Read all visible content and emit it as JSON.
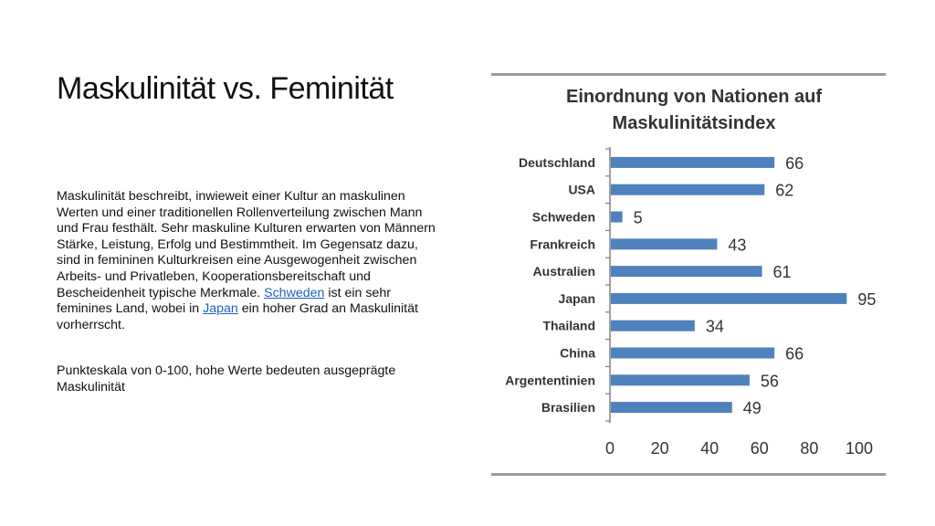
{
  "slide": {
    "title": "Maskulinität vs. Feminität",
    "paragraph1": {
      "text_before": "Maskulinität beschreibt, inwieweit einer Kultur an maskulinen Werten und einer traditionellen Rollenverteilung zwischen Mann und Frau festhält. Sehr maskuline Kulturen erwarten von Männern Stärke, Leistung, Erfolg und Bestimmtheit. Im Gegensatz dazu, sind in femininen Kulturkreisen eine Ausgewogenheit zwischen Arbeits- und Privatleben, Kooperationsbereitschaft und Bescheidenheit typische Merkmale. ",
      "link1": "Schweden",
      "text_middle": " ist ein sehr feminines Land, wobei in ",
      "link2": "Japan",
      "text_after": " ein hoher Grad an Maskulinität vorherrscht."
    },
    "paragraph2": "Punkteskala von 0-100, hohe Werte bedeuten ausgeprägte Maskulinität"
  },
  "chart_data": {
    "type": "bar",
    "orientation": "horizontal",
    "title": "Einordnung von Nationen auf Maskulinitätsindex",
    "title_lines": [
      "Einordnung von Nationen auf",
      "Maskulinitätsindex"
    ],
    "categories": [
      "Deutschland",
      "USA",
      "Schweden",
      "Frankreich",
      "Australien",
      "Japan",
      "Thailand",
      "China",
      "Argententinien",
      "Brasilien"
    ],
    "values": [
      66,
      62,
      5,
      43,
      61,
      95,
      34,
      66,
      56,
      49
    ],
    "xlim": [
      0,
      100
    ],
    "xticks": [
      "0",
      "20",
      "40",
      "60",
      "80",
      "100"
    ],
    "bar_color": "#4f81bd",
    "data_labels": true,
    "grid": false,
    "legend": "none"
  }
}
